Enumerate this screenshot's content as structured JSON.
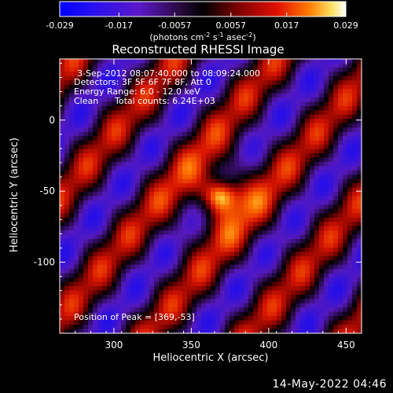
{
  "chart_data": {
    "type": "heatmap",
    "title": "Reconstructed RHESSI Image",
    "xlabel": "Heliocentric X (arcsec)",
    "ylabel": "Heliocentric Y (arcsec)",
    "xlim": [
      265,
      460
    ],
    "ylim": [
      -150,
      43
    ],
    "x_ticks": [
      300,
      350,
      400,
      450
    ],
    "y_ticks": [
      0,
      -50,
      -100
    ],
    "peak": {
      "x": 369,
      "y": -53
    },
    "colorbar": {
      "min": -0.029,
      "max": 0.029,
      "ticks": [
        "-0.029",
        "-0.017",
        "-0.0057",
        "0.0057",
        "0.017",
        "0.029"
      ],
      "units_main": "(photons cm",
      "units_exp1": "-2",
      "units_mid1": " s",
      "units_exp2": "-1",
      "units_mid2": " asec",
      "units_exp3": "-2",
      "units_end": ")"
    },
    "annotations": {
      "time_range": "3-Sep-2012 08:07:40.000 to 08:09:24.000",
      "detectors": "Detectors: 3F 5F 6F 7F 8F, Att 0",
      "energy": "Energy Range: 6.0 - 12.0 keV",
      "method": "Clean",
      "counts": "Total counts: 6.24E+03",
      "peak_text": "Position of Peak = [369,-53]"
    }
  },
  "footer": {
    "date": "14-May-2022 04:46"
  },
  "colors": {
    "background": "#000000",
    "text": "#ffffff"
  }
}
